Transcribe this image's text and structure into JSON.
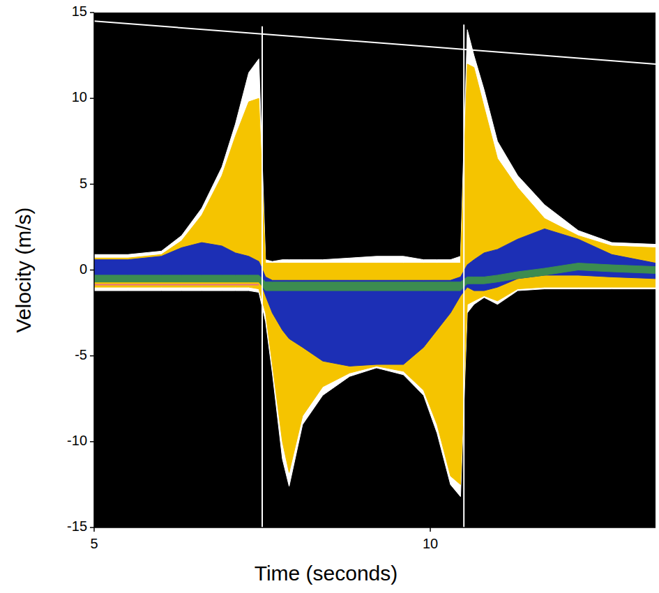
{
  "chart_data": {
    "type": "area",
    "x_label": "Time (seconds)",
    "y_label": "Velocity (m/s)",
    "xlim": [
      5,
      13.35
    ],
    "ylim": [
      -15,
      15
    ],
    "xticks": [
      5,
      10
    ],
    "yticks": [
      -15,
      -10,
      -5,
      0,
      5,
      10,
      15
    ],
    "grid": false,
    "series": [
      {
        "type": "area",
        "color": "#ffffff",
        "x": [
          5,
          5.5,
          6,
          6.3,
          6.6,
          6.9,
          7.1,
          7.3,
          7.45,
          7.55,
          7.65,
          7.8,
          7.9,
          8.1,
          8.4,
          8.8,
          9.2,
          9.6,
          9.9,
          10.1,
          10.3,
          10.45,
          10.55,
          10.65,
          10.8,
          11,
          11.3,
          11.7,
          12.2,
          12.7,
          13.35
        ],
        "high": [
          0.9,
          0.9,
          1.1,
          2.0,
          3.6,
          6.0,
          8.5,
          11.5,
          12.3,
          0.6,
          0.5,
          0.6,
          0.6,
          0.6,
          0.6,
          0.7,
          0.8,
          0.8,
          0.6,
          0.6,
          0.6,
          0.8,
          14.0,
          12.5,
          10.5,
          7.5,
          5.5,
          3.8,
          2.3,
          1.6,
          1.5
        ],
        "low": [
          -1.2,
          -1.2,
          -1.2,
          -1.2,
          -1.2,
          -1.2,
          -1.2,
          -1.2,
          -1.3,
          -3.0,
          -6.0,
          -11.0,
          -12.6,
          -9.0,
          -7.3,
          -6.2,
          -5.7,
          -6.1,
          -7.3,
          -9.5,
          -12.5,
          -13.2,
          -2.5,
          -2.0,
          -1.6,
          -2.0,
          -1.2,
          -1.1,
          -1.1,
          -1.1,
          -1.1
        ]
      },
      {
        "type": "area",
        "color": "#f5c400",
        "x": [
          5,
          5.5,
          6,
          6.3,
          6.6,
          6.9,
          7.1,
          7.3,
          7.45,
          7.55,
          7.65,
          7.8,
          7.9,
          8.1,
          8.4,
          8.8,
          9.2,
          9.6,
          9.9,
          10.1,
          10.3,
          10.45,
          10.55,
          10.65,
          10.8,
          11,
          11.3,
          11.7,
          12.2,
          12.7,
          13.35
        ],
        "high": [
          0.7,
          0.7,
          0.9,
          1.7,
          3.2,
          5.5,
          7.8,
          9.8,
          10.0,
          0.4,
          0.4,
          0.4,
          0.4,
          0.4,
          0.4,
          0.4,
          0.4,
          0.4,
          0.4,
          0.4,
          0.4,
          0.4,
          12.0,
          11.8,
          9.5,
          6.5,
          4.8,
          3.0,
          2.0,
          1.4,
          1.3
        ],
        "low": [
          -1.0,
          -1.0,
          -1.0,
          -1.0,
          -1.0,
          -1.0,
          -1.0,
          -1.0,
          -1.1,
          -2.5,
          -5.5,
          -10.0,
          -11.8,
          -8.5,
          -6.8,
          -6.0,
          -5.6,
          -5.9,
          -7.0,
          -9.0,
          -12.0,
          -12.5,
          -2.0,
          -1.8,
          -1.5,
          -1.8,
          -1.1,
          -1.0,
          -1.0,
          -1.0,
          -1.0
        ]
      },
      {
        "type": "area",
        "color": "#1c2fb5",
        "x": [
          5,
          5.5,
          6,
          6.3,
          6.6,
          6.9,
          7.1,
          7.3,
          7.45,
          7.55,
          7.65,
          7.8,
          7.9,
          8.1,
          8.4,
          8.8,
          9.2,
          9.6,
          9.9,
          10.1,
          10.3,
          10.45,
          10.55,
          10.65,
          10.8,
          11,
          11.3,
          11.7,
          12.2,
          12.7,
          13.35
        ],
        "high": [
          0.6,
          0.6,
          0.8,
          1.3,
          1.6,
          1.4,
          1.0,
          0.8,
          0.5,
          -0.4,
          -0.6,
          -0.6,
          -0.6,
          -0.6,
          -0.6,
          -0.6,
          -0.6,
          -0.6,
          -0.6,
          -0.6,
          -0.6,
          -0.4,
          0.3,
          0.6,
          1.0,
          1.2,
          1.8,
          2.4,
          1.8,
          0.9,
          0.4
        ],
        "low": [
          -0.3,
          -0.3,
          -0.3,
          -0.3,
          -0.3,
          -0.3,
          -0.3,
          -0.3,
          -0.4,
          -1.5,
          -2.5,
          -3.5,
          -4.0,
          -4.5,
          -5.3,
          -5.6,
          -5.5,
          -5.5,
          -4.5,
          -3.5,
          -2.5,
          -1.5,
          -1.0,
          -1.2,
          -1.2,
          -1.0,
          -0.5,
          -0.3,
          -0.3,
          -0.4,
          -0.5
        ]
      },
      {
        "type": "area",
        "color": "#3c8c50",
        "x": [
          5,
          5.5,
          6,
          6.3,
          6.6,
          6.9,
          7.1,
          7.3,
          7.45,
          7.55,
          7.65,
          7.8,
          7.9,
          8.1,
          8.4,
          8.8,
          9.2,
          9.6,
          9.9,
          10.1,
          10.3,
          10.45,
          10.55,
          10.65,
          10.8,
          11,
          11.3,
          11.7,
          12.2,
          12.7,
          13.35
        ],
        "high": [
          -0.3,
          -0.3,
          -0.3,
          -0.3,
          -0.3,
          -0.3,
          -0.3,
          -0.3,
          -0.3,
          -0.7,
          -0.7,
          -0.7,
          -0.7,
          -0.7,
          -0.7,
          -0.7,
          -0.7,
          -0.7,
          -0.7,
          -0.7,
          -0.7,
          -0.7,
          -0.4,
          -0.4,
          -0.4,
          -0.3,
          -0.1,
          0.1,
          0.4,
          0.3,
          0.2
        ],
        "low": [
          -0.7,
          -0.7,
          -0.7,
          -0.7,
          -0.7,
          -0.7,
          -0.7,
          -0.7,
          -0.7,
          -1.2,
          -1.2,
          -1.2,
          -1.2,
          -1.2,
          -1.2,
          -1.2,
          -1.2,
          -1.2,
          -1.2,
          -1.2,
          -1.2,
          -1.2,
          -0.8,
          -0.8,
          -0.8,
          -0.7,
          -0.5,
          -0.3,
          0.0,
          -0.1,
          -0.2
        ]
      },
      {
        "type": "line",
        "color": "#e8708a",
        "x": [
          5,
          7.45
        ],
        "values": [
          -0.85,
          -0.85
        ]
      },
      {
        "type": "line",
        "color": "#ffffff",
        "x": [
          7.5,
          7.5
        ],
        "values": [
          -15,
          14.2
        ]
      },
      {
        "type": "line",
        "color": "#ffffff",
        "x": [
          10.5,
          10.5
        ],
        "values": [
          -15,
          14.3
        ]
      },
      {
        "type": "line",
        "color": "#ffffff",
        "x": [
          5,
          13.35
        ],
        "values": [
          14.5,
          12.0
        ]
      }
    ]
  }
}
